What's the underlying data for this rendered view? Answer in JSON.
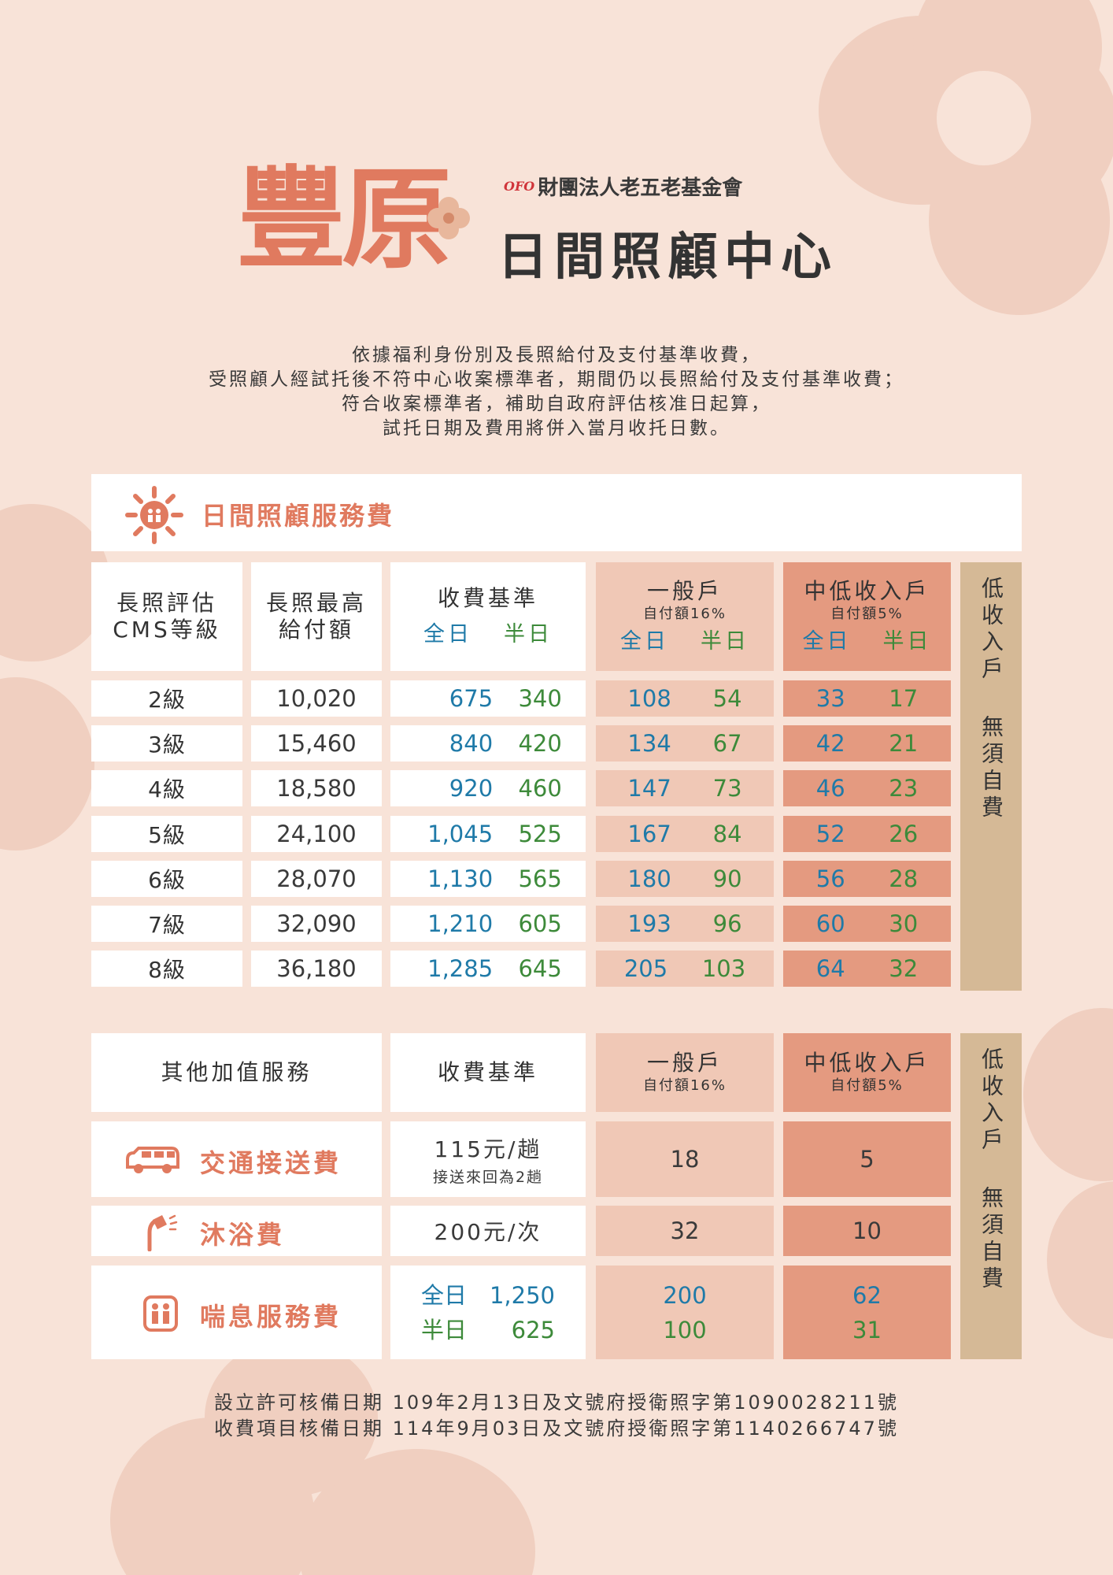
{
  "header": {
    "brand": "豐原",
    "foundation_logo": "OFO",
    "foundation_name": "財團法人老五老基金會",
    "center_name": "日間照顧中心"
  },
  "intro_lines": [
    "依據福利身份別及長照給付及支付基準收費，",
    "受照顧人經試托後不符中心收案標準者，期間仍以長照給付及支付基準收費；",
    "符合收案標準者，補助自政府評估核准日起算，",
    "試托日期及費用將併入當月收托日數。"
  ],
  "section_title": "日間照顧服務費",
  "table1": {
    "headers": {
      "cms_line1": "長照評估",
      "cms_line2": "CMS等級",
      "max_line1": "長照最高",
      "max_line2": "給付額",
      "standard": "收費基準",
      "general": "一般戶",
      "general_sub": "自付額16%",
      "midlow": "中低收入戶",
      "midlow_sub": "自付額5%",
      "full": "全日",
      "half": "半日",
      "low": "低收入戶",
      "free": "無須自費"
    },
    "rows": [
      {
        "grade": "2級",
        "max": "10,020",
        "std_full": "675",
        "std_half": "340",
        "gen_full": "108",
        "gen_half": "54",
        "mid_full": "33",
        "mid_half": "17"
      },
      {
        "grade": "3級",
        "max": "15,460",
        "std_full": "840",
        "std_half": "420",
        "gen_full": "134",
        "gen_half": "67",
        "mid_full": "42",
        "mid_half": "21"
      },
      {
        "grade": "4級",
        "max": "18,580",
        "std_full": "920",
        "std_half": "460",
        "gen_full": "147",
        "gen_half": "73",
        "mid_full": "46",
        "mid_half": "23"
      },
      {
        "grade": "5級",
        "max": "24,100",
        "std_full": "1,045",
        "std_half": "525",
        "gen_full": "167",
        "gen_half": "84",
        "mid_full": "52",
        "mid_half": "26"
      },
      {
        "grade": "6級",
        "max": "28,070",
        "std_full": "1,130",
        "std_half": "565",
        "gen_full": "180",
        "gen_half": "90",
        "mid_full": "56",
        "mid_half": "28"
      },
      {
        "grade": "7級",
        "max": "32,090",
        "std_full": "1,210",
        "std_half": "605",
        "gen_full": "193",
        "gen_half": "96",
        "mid_full": "60",
        "mid_half": "30"
      },
      {
        "grade": "8級",
        "max": "36,180",
        "std_full": "1,285",
        "std_half": "645",
        "gen_full": "205",
        "gen_half": "103",
        "mid_full": "64",
        "mid_half": "32"
      }
    ]
  },
  "table2": {
    "headers": {
      "service": "其他加值服務",
      "standard": "收費基準",
      "general": "一般戶",
      "general_sub": "自付額16%",
      "midlow": "中低收入戶",
      "midlow_sub": "自付額5%",
      "low": "低收入戶",
      "free": "無須自費"
    },
    "transport": {
      "label": "交通接送費",
      "std": "115元/趟",
      "std_note": "接送來回為2趟",
      "general": "18",
      "midlow": "5"
    },
    "bath": {
      "label": "沐浴費",
      "std": "200元/次",
      "general": "32",
      "midlow": "10"
    },
    "respite": {
      "label": "喘息服務費",
      "full_label": "全日",
      "full_std": "1,250",
      "half_label": "半日",
      "half_std": "625",
      "gen_full": "200",
      "gen_half": "100",
      "mid_full": "62",
      "mid_half": "31"
    }
  },
  "footer_lines": [
    "設立許可核備日期 109年2月13日及文號府授衛照字第1090028211號",
    "收費項目核備日期 114年9月03日及文號府授衛照字第1140266747號"
  ],
  "colors": {
    "background": "#f8e3d8",
    "accent": "#e07a5f",
    "general_col": "#f0c8b6",
    "midlow_col": "#e49a80",
    "low_col": "#d5b996",
    "full_value": "#1f7aa8",
    "half_value": "#3d8a3a"
  }
}
